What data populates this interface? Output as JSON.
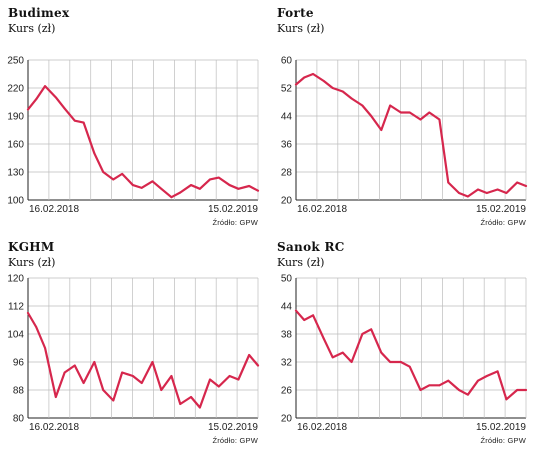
{
  "source_label": "Źródło: GPW",
  "colors": {
    "line": "#d6274d",
    "grid": "#bdbdbd",
    "axis": "#222222"
  },
  "chart_data": [
    {
      "type": "line",
      "title": "Budimex",
      "subtitle": "Kurs (zł)",
      "yticks": [
        "250",
        "220",
        "190",
        "160",
        "130",
        "100"
      ],
      "ylim": [
        100,
        250
      ],
      "xlabels": [
        "16.02.2018",
        "15.02.2019"
      ],
      "x": [
        "2018-02-16",
        "2018-03-01",
        "2018-03-15",
        "2018-04-01",
        "2018-04-15",
        "2018-05-01",
        "2018-05-15",
        "2018-06-01",
        "2018-06-15",
        "2018-07-01",
        "2018-07-15",
        "2018-08-01",
        "2018-08-15",
        "2018-09-01",
        "2018-09-15",
        "2018-10-01",
        "2018-10-15",
        "2018-11-01",
        "2018-11-15",
        "2018-12-01",
        "2018-12-15",
        "2019-01-01",
        "2019-01-15",
        "2019-02-01",
        "2019-02-15"
      ],
      "series": [
        {
          "values": [
            197,
            208,
            222,
            210,
            198,
            185,
            183,
            150,
            130,
            122,
            128,
            116,
            113,
            120,
            112,
            103,
            108,
            116,
            112,
            122,
            124,
            116,
            112,
            115,
            110
          ]
        }
      ],
      "grid": true
    },
    {
      "type": "line",
      "title": "Forte",
      "subtitle": "Kurs (zł)",
      "yticks": [
        "60",
        "52",
        "44",
        "36",
        "28",
        "20"
      ],
      "ylim": [
        20,
        60
      ],
      "xlabels": [
        "16.02.2018",
        "15.02.2019"
      ],
      "x": [
        "2018-02-16",
        "2018-03-01",
        "2018-03-15",
        "2018-04-01",
        "2018-04-15",
        "2018-05-01",
        "2018-05-15",
        "2018-06-01",
        "2018-06-15",
        "2018-07-01",
        "2018-07-15",
        "2018-08-01",
        "2018-08-15",
        "2018-09-01",
        "2018-09-15",
        "2018-10-01",
        "2018-10-15",
        "2018-11-01",
        "2018-11-15",
        "2018-12-01",
        "2018-12-15",
        "2019-01-01",
        "2019-01-15",
        "2019-02-01",
        "2019-02-15"
      ],
      "series": [
        {
          "values": [
            53,
            55,
            56,
            54,
            52,
            51,
            49,
            47,
            44,
            40,
            47,
            45,
            45,
            43,
            45,
            43,
            25,
            22,
            21,
            23,
            22,
            23,
            22,
            25,
            24
          ]
        }
      ],
      "grid": true
    },
    {
      "type": "line",
      "title": "KGHM",
      "subtitle": "Kurs (zł)",
      "yticks": [
        "120",
        "112",
        "104",
        "96",
        "88",
        "80"
      ],
      "ylim": [
        80,
        120
      ],
      "xlabels": [
        "16.02.2018",
        "15.02.2019"
      ],
      "x": [
        "2018-02-16",
        "2018-03-01",
        "2018-03-15",
        "2018-04-01",
        "2018-04-15",
        "2018-05-01",
        "2018-05-15",
        "2018-06-01",
        "2018-06-15",
        "2018-07-01",
        "2018-07-15",
        "2018-08-01",
        "2018-08-15",
        "2018-09-01",
        "2018-09-15",
        "2018-10-01",
        "2018-10-15",
        "2018-11-01",
        "2018-11-15",
        "2018-12-01",
        "2018-12-15",
        "2019-01-01",
        "2019-01-15",
        "2019-02-01",
        "2019-02-15"
      ],
      "series": [
        {
          "values": [
            110,
            106,
            100,
            86,
            93,
            95,
            90,
            96,
            88,
            85,
            93,
            92,
            90,
            96,
            88,
            92,
            84,
            86,
            83,
            91,
            89,
            92,
            91,
            98,
            95
          ]
        }
      ],
      "grid": true
    },
    {
      "type": "line",
      "title": "Sanok RC",
      "subtitle": "Kurs (zł)",
      "yticks": [
        "50",
        "44",
        "38",
        "32",
        "26",
        "20"
      ],
      "ylim": [
        20,
        50
      ],
      "xlabels": [
        "16.02.2018",
        "15.02.2019"
      ],
      "x": [
        "2018-02-16",
        "2018-03-01",
        "2018-03-15",
        "2018-04-01",
        "2018-04-15",
        "2018-05-01",
        "2018-05-15",
        "2018-06-01",
        "2018-06-15",
        "2018-07-01",
        "2018-07-15",
        "2018-08-01",
        "2018-08-15",
        "2018-09-01",
        "2018-09-15",
        "2018-10-01",
        "2018-10-15",
        "2018-11-01",
        "2018-11-15",
        "2018-12-01",
        "2018-12-15",
        "2019-01-01",
        "2019-01-15",
        "2019-02-01",
        "2019-02-15"
      ],
      "series": [
        {
          "values": [
            43,
            41,
            42,
            37,
            33,
            34,
            32,
            38,
            39,
            34,
            32,
            32,
            31,
            26,
            27,
            27,
            28,
            26,
            25,
            28,
            29,
            30,
            24,
            26,
            26
          ]
        }
      ],
      "grid": true
    }
  ]
}
